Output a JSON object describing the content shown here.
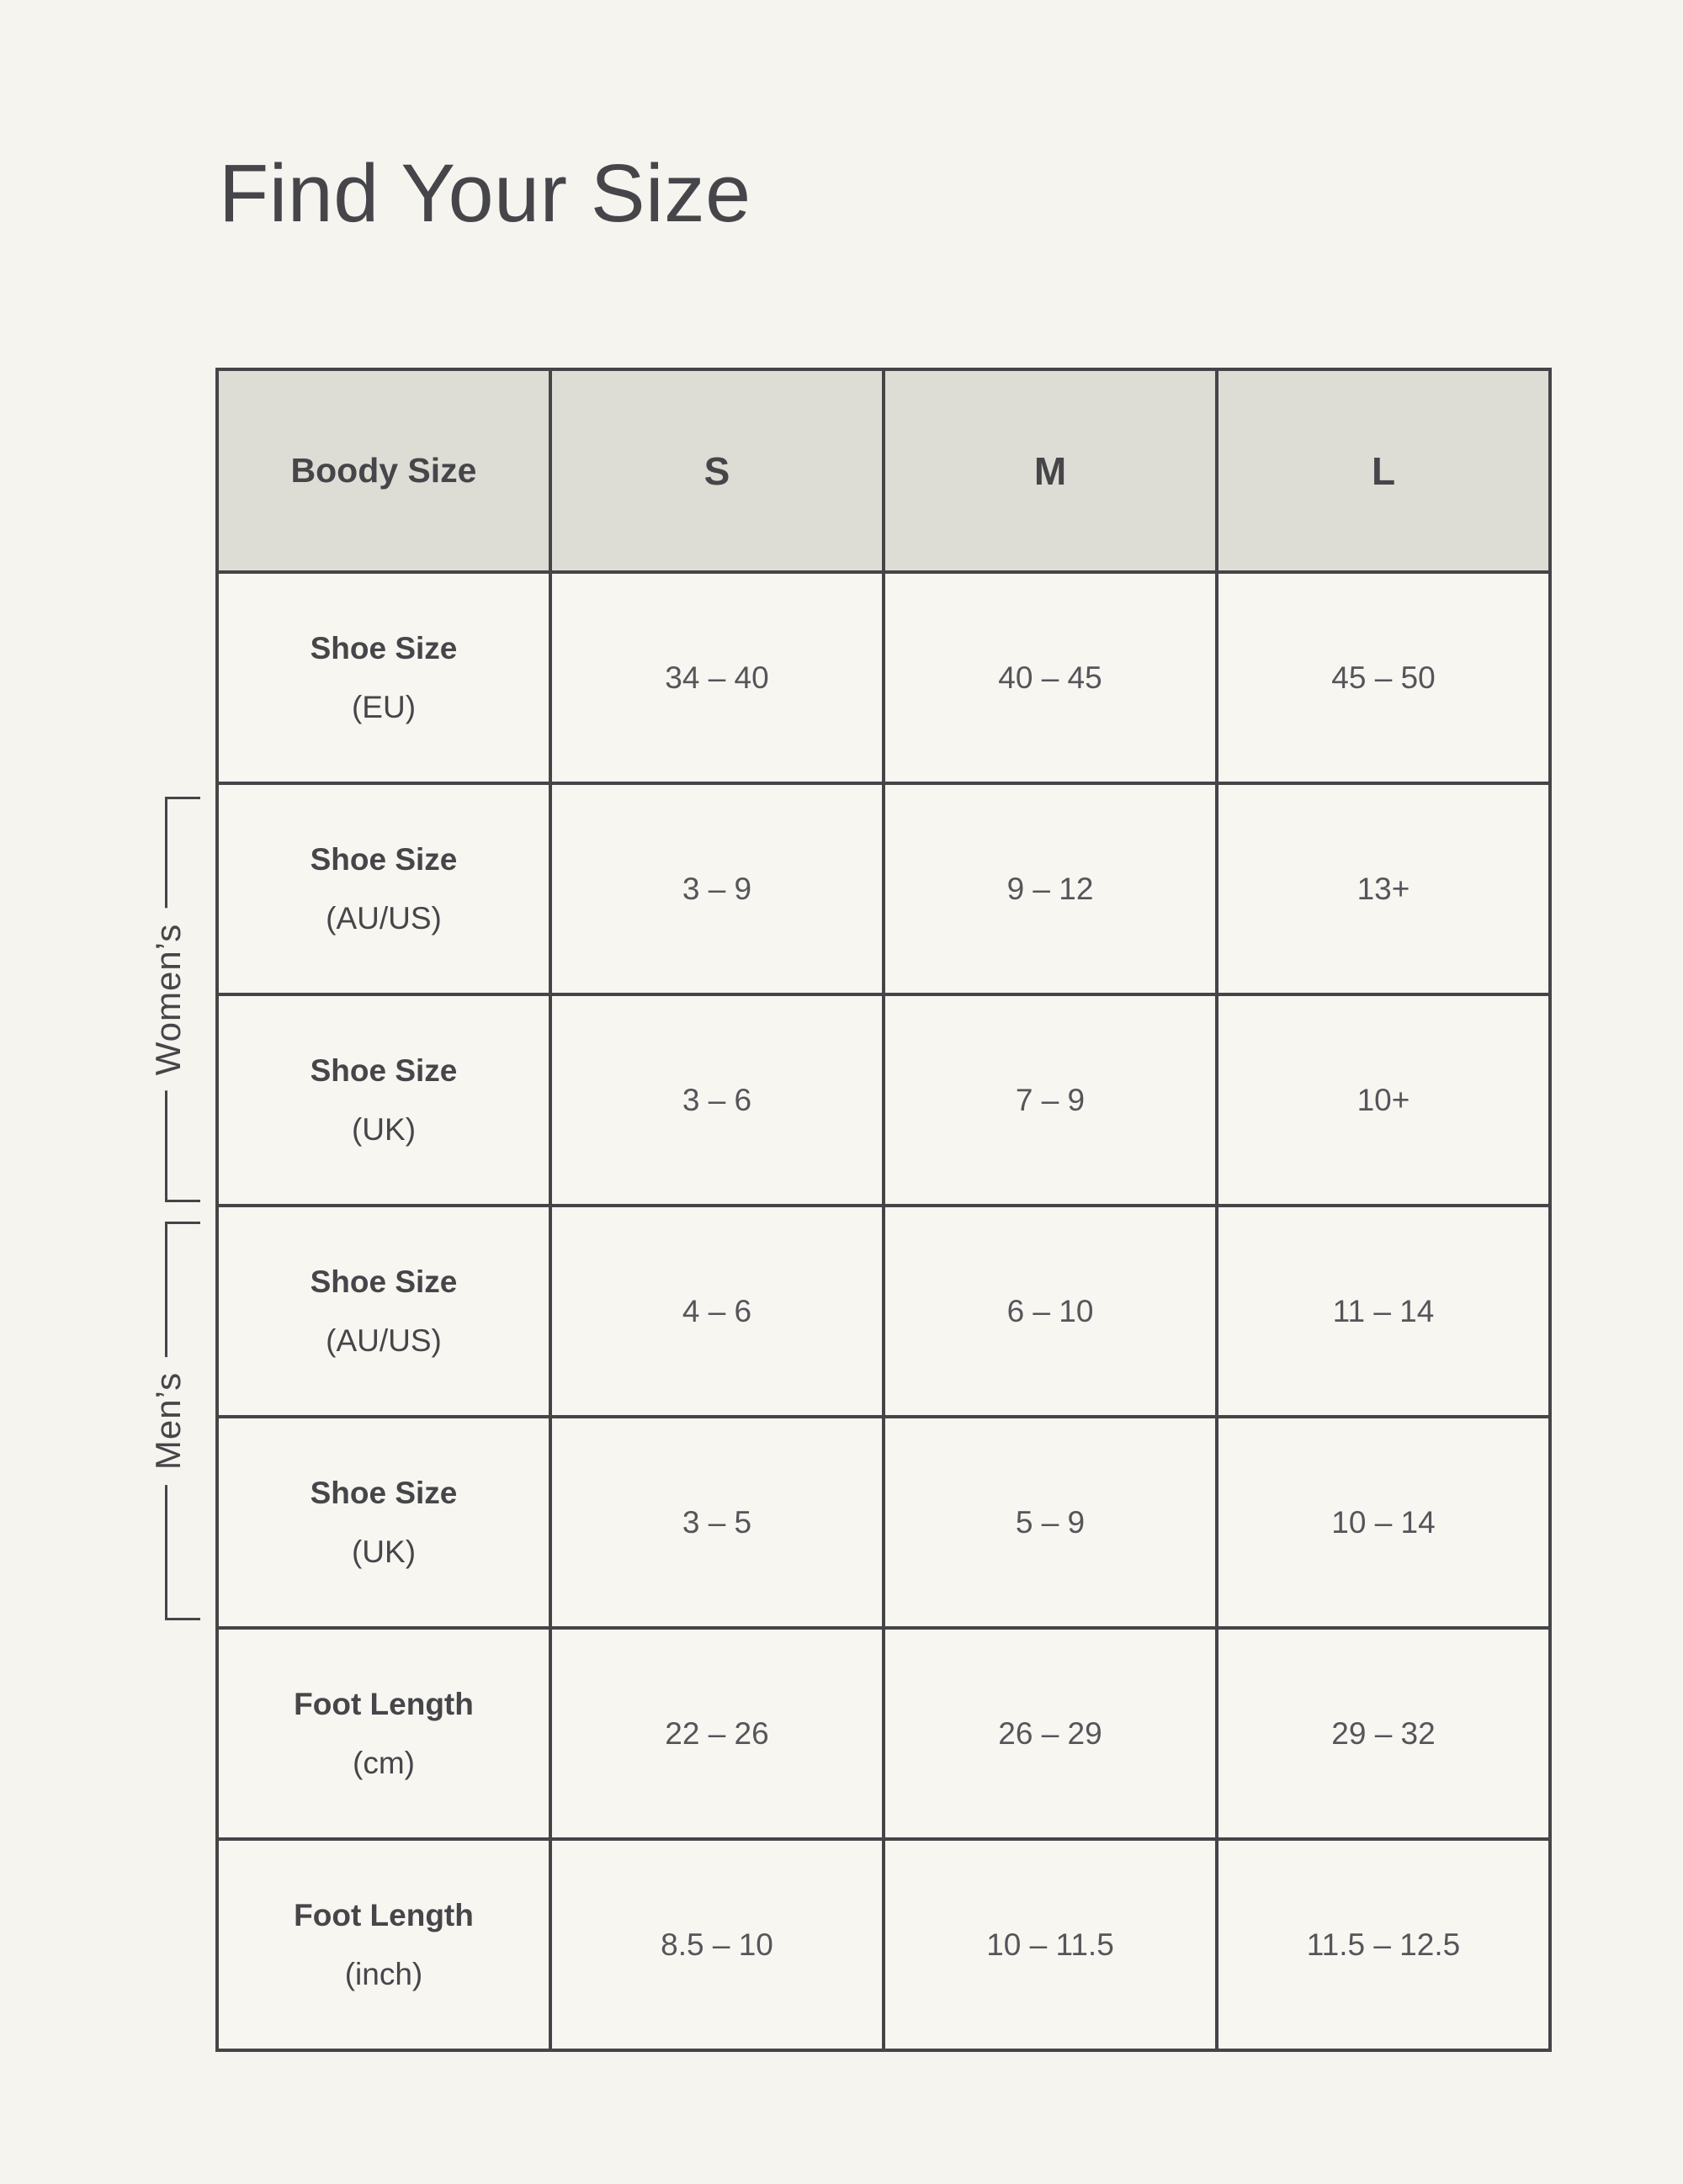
{
  "title": "Find Your Size",
  "side_labels": {
    "womens": "Women’s",
    "mens": "Men’s"
  },
  "colors": {
    "page-bg": "#F5F4EF",
    "cell-bg": "#F7F6F1",
    "header-bg": "#DEDDD5",
    "border": "#454548",
    "text": "#46464A",
    "value-text": "#55555A"
  },
  "chart_data": {
    "type": "table",
    "title": "Find Your Size",
    "columns": [
      "Boody Size",
      "S",
      "M",
      "L"
    ],
    "rows": [
      {
        "label": "Shoe Size",
        "unit": "(EU)",
        "group": "",
        "S": "34 – 40",
        "M": "40 – 45",
        "L": "45 – 50"
      },
      {
        "label": "Shoe Size",
        "unit": "(AU/US)",
        "group": "Women’s",
        "S": "3 – 9",
        "M": "9 – 12",
        "L": "13+"
      },
      {
        "label": "Shoe Size",
        "unit": "(UK)",
        "group": "Women’s",
        "S": "3 – 6",
        "M": "7 – 9",
        "L": "10+"
      },
      {
        "label": "Shoe Size",
        "unit": "(AU/US)",
        "group": "Men’s",
        "S": "4 – 6",
        "M": "6 – 10",
        "L": "11 – 14"
      },
      {
        "label": "Shoe Size",
        "unit": "(UK)",
        "group": "Men’s",
        "S": "3 – 5",
        "M": "5 – 9",
        "L": "10 – 14"
      },
      {
        "label": "Foot Length",
        "unit": "(cm)",
        "group": "",
        "S": "22 – 26",
        "M": "26 – 29",
        "L": "29 – 32"
      },
      {
        "label": "Foot Length",
        "unit": "(inch)",
        "group": "",
        "S": "8.5 – 10",
        "M": "10 – 11.5",
        "L": "11.5 – 12.5"
      }
    ]
  }
}
